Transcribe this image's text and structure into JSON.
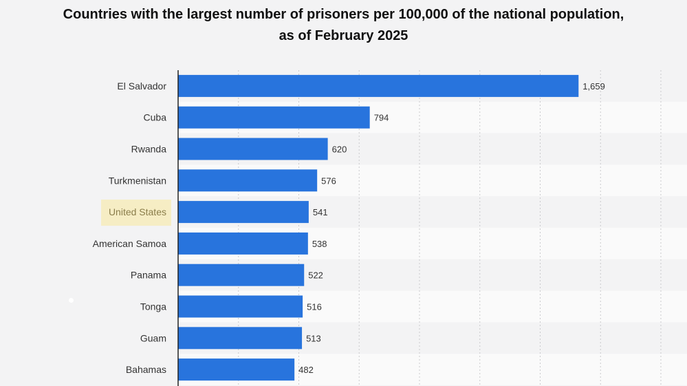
{
  "title": {
    "line1": "Countries with the largest number of prisoners per 100,000 of the national population,",
    "line2": "as of February 2025"
  },
  "chart_data": {
    "type": "bar",
    "orientation": "horizontal",
    "categories": [
      "El Salvador",
      "Cuba",
      "Rwanda",
      "Turkmenistan",
      "United States",
      "American Samoa",
      "Panama",
      "Tonga",
      "Guam",
      "Bahamas"
    ],
    "values": [
      1659,
      794,
      620,
      576,
      541,
      538,
      522,
      516,
      513,
      482
    ],
    "value_labels": [
      "1,659",
      "794",
      "620",
      "576",
      "541",
      "538",
      "522",
      "516",
      "513",
      "482"
    ],
    "highlighted_category": "United States",
    "xlim": [
      0,
      2000
    ],
    "grid": true,
    "colors": {
      "bar": "#2874dd",
      "highlight_label_bg": "#f6edc4",
      "highlight_label_text": "#8a7d4a",
      "label_text": "#333333",
      "background": "#f3f3f4"
    }
  }
}
